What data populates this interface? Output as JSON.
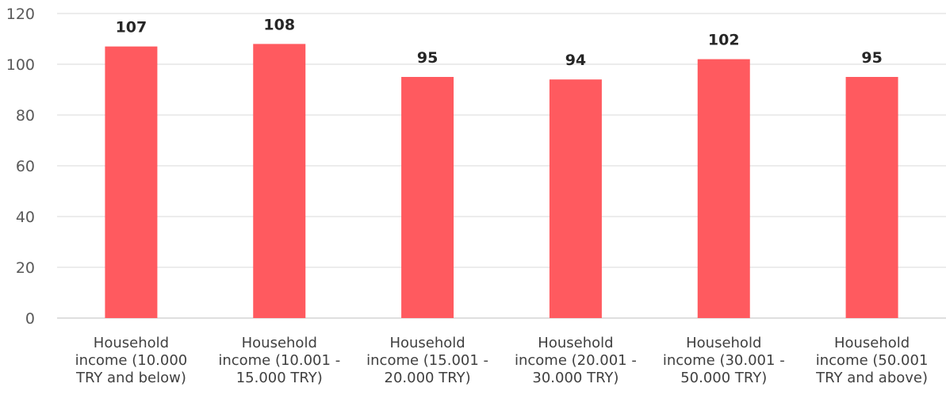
{
  "chart_data": {
    "type": "bar",
    "categories": [
      [
        "Household",
        "income (10.000",
        "TRY and below)"
      ],
      [
        "Household",
        "income (10.001 -",
        "15.000 TRY)"
      ],
      [
        "Household",
        "income (15.001 -",
        "20.000 TRY)"
      ],
      [
        "Household",
        "income (20.001 -",
        "30.000 TRY)"
      ],
      [
        "Household",
        "income (30.001 -",
        "50.000 TRY)"
      ],
      [
        "Household",
        "income (50.001",
        "TRY and above)"
      ]
    ],
    "values": [
      107,
      108,
      95,
      94,
      102,
      95
    ],
    "data_labels": [
      "107",
      "108",
      "95",
      "94",
      "102",
      "95"
    ],
    "title": "",
    "xlabel": "",
    "ylabel": "",
    "ylim": [
      0,
      120
    ],
    "yticks": [
      0,
      20,
      40,
      60,
      80,
      100,
      120
    ],
    "grid": true,
    "legend": "none",
    "bar_color": "#ff5a5f"
  }
}
